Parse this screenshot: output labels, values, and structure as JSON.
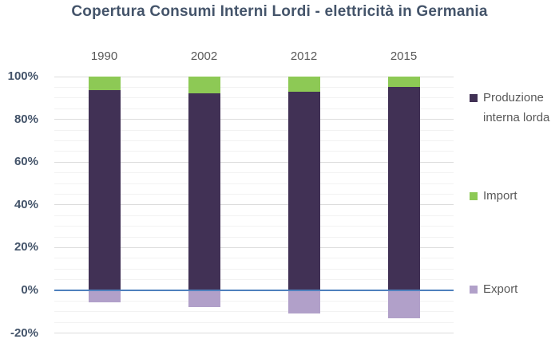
{
  "chart_data": {
    "type": "bar",
    "variant": "stacked-100-with-negatives",
    "title": "Copertura Consumi Interni Lordi - elettricità in Germania",
    "categories": [
      "1990",
      "2002",
      "2012",
      "2015"
    ],
    "series": [
      {
        "name": "Produzione interna lorda",
        "color": "#413155",
        "values": [
          93.5,
          92,
          93,
          95
        ]
      },
      {
        "name": "Import",
        "color": "#8DC955",
        "values": [
          6.5,
          8,
          7,
          5
        ]
      },
      {
        "name": "Export",
        "color": "#B1A0C9",
        "values": [
          -5.5,
          -8,
          -11,
          -13
        ]
      }
    ],
    "y_axis": {
      "min": -20,
      "max": 100,
      "major_step": 20,
      "minor_step": 5,
      "tick_labels": [
        "100%",
        "80%",
        "60%",
        "40%",
        "20%",
        "0%",
        "-20%"
      ],
      "tick_values": [
        100,
        80,
        60,
        40,
        20,
        0,
        -20
      ]
    },
    "grid": "major-and-minor-horizontal",
    "zero_line_color": "#4F81BD",
    "legend_position": "right"
  },
  "colors": {
    "title_text": "#44546A",
    "axis_text": "#44546A",
    "category_text": "#595959",
    "legend_text": "#595959",
    "major_gridline": "#DCDCDC",
    "minor_gridline": "#F2F2F2",
    "background": "#FFFFFF"
  }
}
